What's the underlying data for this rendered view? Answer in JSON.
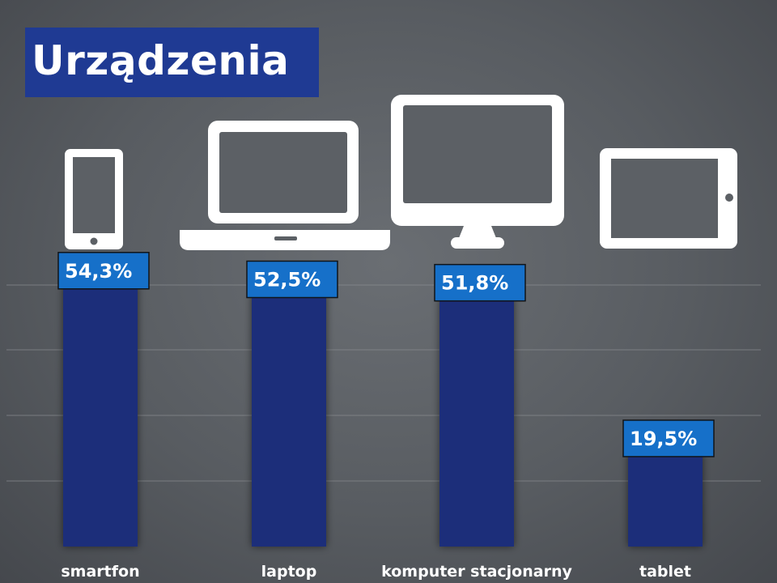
{
  "slide": {
    "title": "Urządzenia"
  },
  "colors": {
    "title_bg": "#1f3a93",
    "bar": "#1e2f7a",
    "label_bg": "#1670c9",
    "icon": "#ffffff",
    "grid": "#8a8d92"
  },
  "icons": [
    "smartphone-icon",
    "laptop-icon",
    "desktop-monitor-icon",
    "tablet-icon"
  ],
  "chart_data": {
    "type": "bar",
    "categories": [
      "smartfon",
      "laptop",
      "komputer stacjonarny",
      "tablet"
    ],
    "values": [
      54.3,
      52.5,
      51.8,
      19.5
    ],
    "value_labels": [
      "54,3%",
      "52,5%",
      "51,8%",
      "19,5%"
    ],
    "title": "",
    "xlabel": "",
    "ylabel": "",
    "ylim": [
      0,
      63
    ],
    "grid": true,
    "legend": "none"
  }
}
